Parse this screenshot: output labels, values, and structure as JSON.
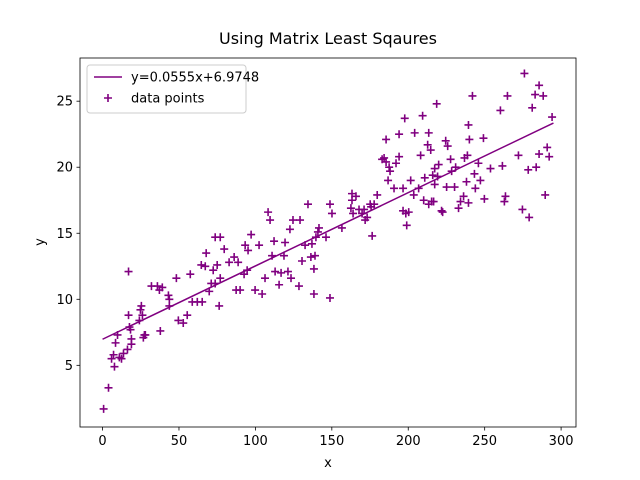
{
  "chart_data": {
    "type": "scatter",
    "title": "Using Matrix Least Sqaures",
    "xlabel": "x",
    "ylabel": "y",
    "xlim": [
      -14.75,
      309.75
    ],
    "ylim": [
      0.33,
      28.27
    ],
    "xticks": [
      0,
      50,
      100,
      150,
      200,
      250,
      300
    ],
    "yticks": [
      5,
      10,
      15,
      20,
      25
    ],
    "grid": false,
    "legend": "upper left",
    "series": [
      {
        "name": "y=0.0555x+6.9748",
        "type": "line",
        "color": "#800080",
        "x": [
          0,
          295
        ],
        "values": [
          6.9748,
          23.3473
        ]
      },
      {
        "name": "data points",
        "type": "scatter",
        "color": "#800080",
        "x": [
          0.7,
          3.9,
          5.9,
          7.2,
          7.8,
          8.5,
          9.8,
          11,
          12.4,
          13.7,
          16.3,
          17,
          17,
          17.6,
          18.3,
          18.9,
          18.9,
          24.1,
          24.8,
          25.4,
          26.1,
          26.7,
          27.4,
          28,
          32,
          35.9,
          37.2,
          39.1,
          37.8,
          43.1,
          43.7,
          43.7,
          48.3,
          49.6,
          52.8,
          55.4,
          57.4,
          58.7,
          62,
          64.6,
          65.2,
          67.2,
          67.8,
          69.8,
          71.1,
          72.4,
          73.7,
          73.7,
          75,
          76.3,
          77,
          77,
          79.6,
          82.8,
          86.1,
          87.4,
          88.7,
          90,
          92.6,
          93.3,
          94.6,
          95.2,
          97.2,
          99.8,
          102.4,
          104.4,
          106.3,
          108.3,
          109.6,
          110.9,
          112.2,
          112.9,
          115.5,
          116.8,
          118.7,
          119.4,
          121.3,
          122.6,
          123.3,
          124.6,
          128.5,
          129.2,
          130.5,
          132.5,
          134.4,
          136.3,
          137,
          138.3,
          138.3,
          139,
          139.6,
          140.9,
          141.6,
          146.2,
          148.8,
          148.8,
          150.1,
          156.6,
          162.5,
          163.2,
          163.2,
          163.9,
          165.8,
          167.8,
          169.8,
          171.1,
          171.8,
          173.1,
          175.1,
          175.7,
          176.4,
          177.7,
          179.7,
          182.9,
          184.2,
          185.5,
          185.5,
          186.8,
          187.5,
          188.1,
          190.7,
          192,
          194,
          194,
          196.6,
          196.6,
          197.7,
          198.4,
          199,
          200.3,
          201.6,
          203.6,
          204.2,
          206.8,
          208.1,
          209.4,
          210.1,
          210.8,
          212.7,
          213.4,
          213.4,
          214.7,
          215.3,
          216,
          216.6,
          217.3,
          217.3,
          218.6,
          219.2,
          219.9,
          221.8,
          222.5,
          224.5,
          225.1,
          225.8,
          227.7,
          228.4,
          230.3,
          231,
          232.9,
          234.2,
          236.2,
          236.8,
          238.1,
          238.7,
          239.4,
          239.4,
          240,
          242,
          243.3,
          243.9,
          245.9,
          247.2,
          249.2,
          249.8,
          253.8,
          260.3,
          261.6,
          262.9,
          263.6,
          264.9,
          272.1,
          274.7,
          276,
          278.5,
          279.1,
          281.1,
          283,
          283.7,
          285.6,
          285.6,
          288.3,
          289.6,
          290.9,
          292.2,
          294.1
        ],
        "values": [
          1.7,
          3.3,
          5.5,
          5.8,
          4.9,
          6.7,
          7.3,
          5.6,
          5.5,
          5.9,
          6.2,
          12.1,
          8.8,
          7.9,
          7.7,
          7,
          6.6,
          8.4,
          9.2,
          9.5,
          8.8,
          7.1,
          7.3,
          7.3,
          11,
          11,
          10.7,
          10.9,
          7.6,
          10.3,
          10,
          9.5,
          11.6,
          8.4,
          8.2,
          8.8,
          11.9,
          9.8,
          9.8,
          12.6,
          9.8,
          12.5,
          13.5,
          10.6,
          11.2,
          12.2,
          14.7,
          11.2,
          12.6,
          9.5,
          11.6,
          14.7,
          13.8,
          12.8,
          13.2,
          10.7,
          12.8,
          10.7,
          11.9,
          14.1,
          12.2,
          13.7,
          14.9,
          10.7,
          14.1,
          10.4,
          11.6,
          16.6,
          16,
          13.3,
          14.4,
          12.1,
          11.1,
          12,
          13.3,
          14.3,
          12.1,
          15.3,
          11.6,
          16,
          11,
          16,
          12.9,
          14.1,
          17.2,
          13.2,
          14.2,
          12.3,
          10.4,
          13.3,
          14.7,
          15.1,
          15.4,
          14.7,
          10.1,
          17.2,
          16.5,
          15.4,
          16.9,
          18,
          17.5,
          16.5,
          17.8,
          16.8,
          16.5,
          16.8,
          16,
          16.2,
          17.2,
          17,
          14.8,
          17.2,
          17.9,
          20.6,
          20.7,
          20.4,
          22.1,
          19,
          20,
          19.7,
          18.4,
          20.3,
          22.5,
          20.8,
          16.7,
          18.4,
          23.7,
          16.5,
          15.6,
          16.6,
          19,
          17.9,
          22.6,
          18.4,
          20.9,
          23.9,
          17.5,
          19.2,
          21.7,
          17.2,
          22.6,
          21.3,
          17.4,
          19.4,
          17.4,
          18.7,
          19.9,
          24.8,
          19.3,
          20.2,
          16.7,
          16.6,
          22,
          18.5,
          21.6,
          20.6,
          19.7,
          18.5,
          20,
          16.9,
          17.4,
          17.8,
          20.7,
          18.9,
          20.9,
          23.2,
          17.3,
          22.1,
          25.4,
          19.5,
          18.4,
          20.3,
          19,
          22.2,
          17.6,
          19.9,
          24.3,
          20.1,
          17.4,
          17.8,
          25.4,
          20.9,
          16.8,
          27.1,
          19.8,
          16.2,
          24.5,
          25.5,
          20,
          26.2,
          21,
          25.4,
          17.9,
          21.5,
          20.8,
          23.8
        ]
      }
    ]
  }
}
